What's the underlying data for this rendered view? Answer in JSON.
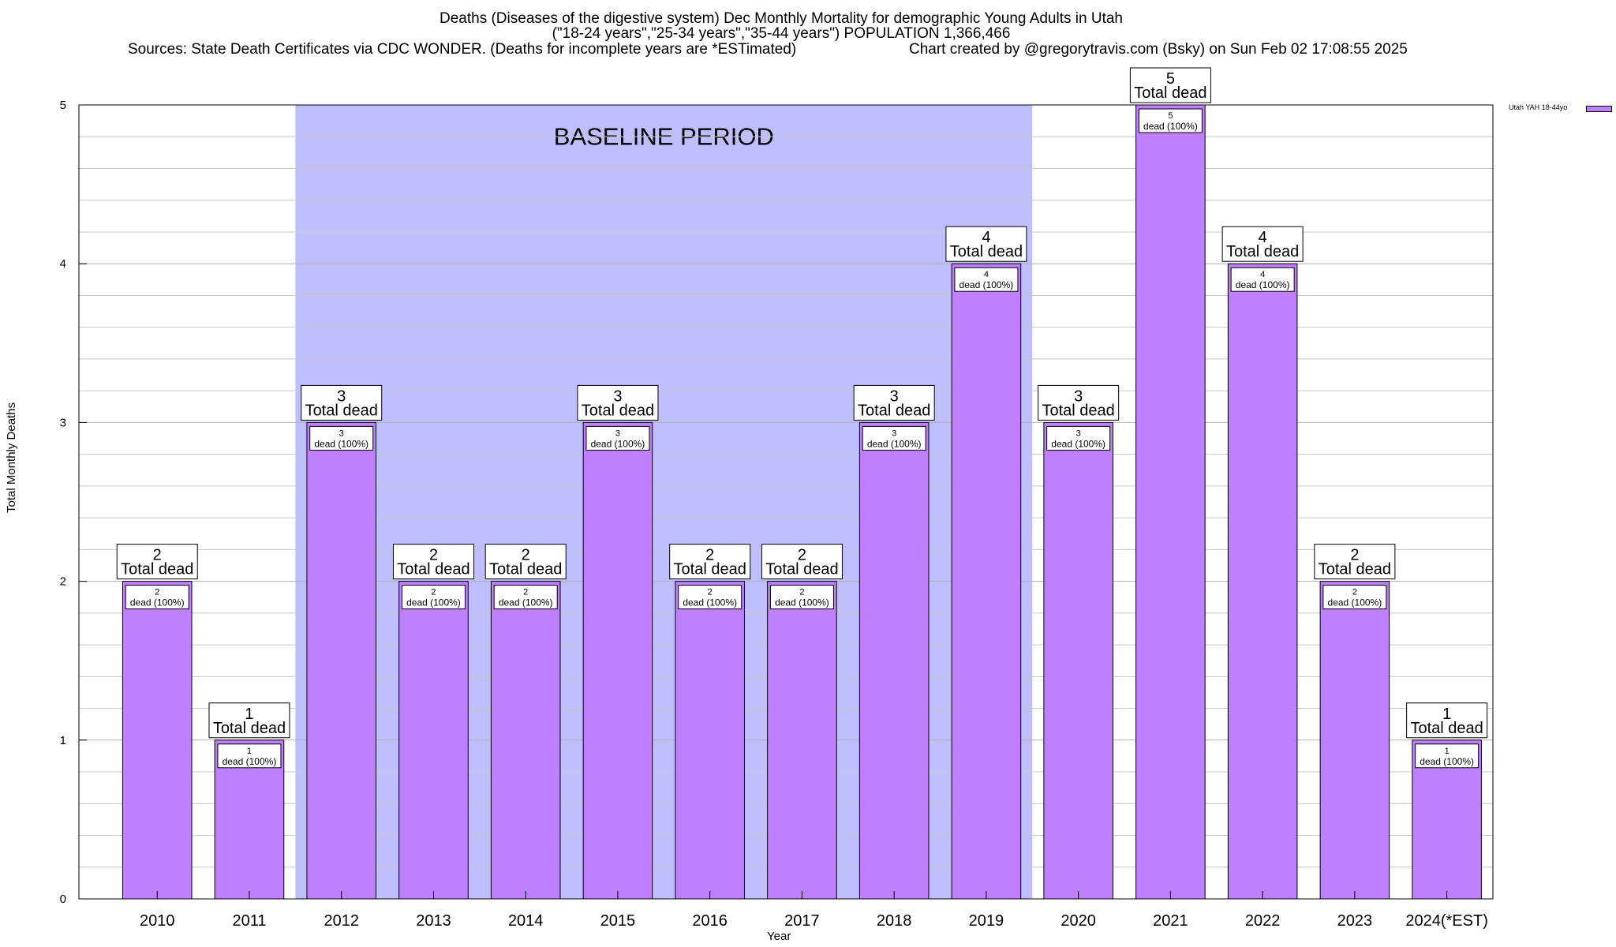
{
  "title": {
    "line1": "Deaths (Diseases of the digestive system) Dec Monthly Mortality for demographic Young Adults in Utah",
    "line2": "(\"18-24 years\",\"25-34 years\",\"35-44 years\") POPULATION 1,366,466",
    "sources": "Sources: State Death Certificates via CDC WONDER. (Deaths for incomplete years are *ESTimated)",
    "credit": "Chart created by @gregorytravis.com (Bsky) on Sun Feb 02 17:08:55 2025"
  },
  "chart_data": {
    "type": "bar",
    "xlabel": "Year",
    "ylabel": "Total Monthly Deaths",
    "ylim": [
      0,
      5
    ],
    "yticks": [
      "0",
      "1",
      "2",
      "3",
      "4",
      "5"
    ],
    "grid": true,
    "legend_position": "top-right",
    "categories": [
      "2010",
      "2011",
      "2012",
      "2013",
      "2014",
      "2015",
      "2016",
      "2017",
      "2018",
      "2019",
      "2020",
      "2021",
      "2022",
      "2023",
      "2024(*EST)"
    ],
    "series": [
      {
        "name": "Utah YAH 18-44yo",
        "color": "#bf80ff",
        "values": [
          2,
          1,
          3,
          2,
          2,
          3,
          2,
          2,
          3,
          4,
          3,
          5,
          4,
          2,
          1
        ]
      }
    ],
    "total_label_suffix": "Total dead",
    "inner_label_suffix": "dead (100%)",
    "baseline": {
      "label": "BASELINE PERIOD",
      "from": "2012",
      "to": "2019",
      "color": "#bfbfff"
    }
  }
}
